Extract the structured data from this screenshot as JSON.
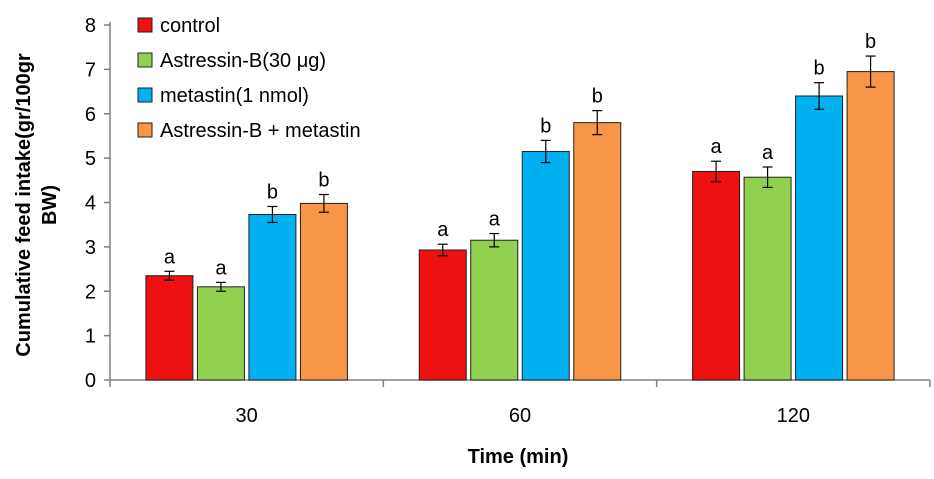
{
  "chart_data": {
    "type": "bar",
    "categories": [
      "30",
      "60",
      "120"
    ],
    "series": [
      {
        "name": "control",
        "color": "#ee1111",
        "values": [
          2.35,
          2.93,
          4.7
        ],
        "errors": [
          0.1,
          0.13,
          0.23
        ],
        "labels": [
          "a",
          "a",
          "a"
        ]
      },
      {
        "name": "Astressin-B(30 μg)",
        "color": "#92d050",
        "values": [
          2.1,
          3.15,
          4.57
        ],
        "errors": [
          0.1,
          0.15,
          0.23
        ],
        "labels": [
          "a",
          "a",
          "a"
        ]
      },
      {
        "name": "metastin(1 nmol)",
        "color": "#00b0f0",
        "values": [
          3.73,
          5.15,
          6.4
        ],
        "errors": [
          0.18,
          0.25,
          0.3
        ],
        "labels": [
          "b",
          "b",
          "b"
        ]
      },
      {
        "name": "Astressin-B + metastin",
        "color": "#f79646",
        "values": [
          3.98,
          5.8,
          6.95
        ],
        "errors": [
          0.2,
          0.27,
          0.35
        ],
        "labels": [
          "b",
          "b",
          "b"
        ]
      }
    ],
    "xlabel": "Time (min)",
    "ylabel": "Cumulative feed intake(gr/100gr BW)",
    "ylabel_lines": [
      "Cumulative feed intake(gr/100gr",
      "BW)"
    ],
    "ylim": [
      0,
      8
    ],
    "yticks": [
      "0",
      "1",
      "2",
      "3",
      "4",
      "5",
      "6",
      "7",
      "8"
    ],
    "grid": false,
    "legend_position": "top-left"
  }
}
